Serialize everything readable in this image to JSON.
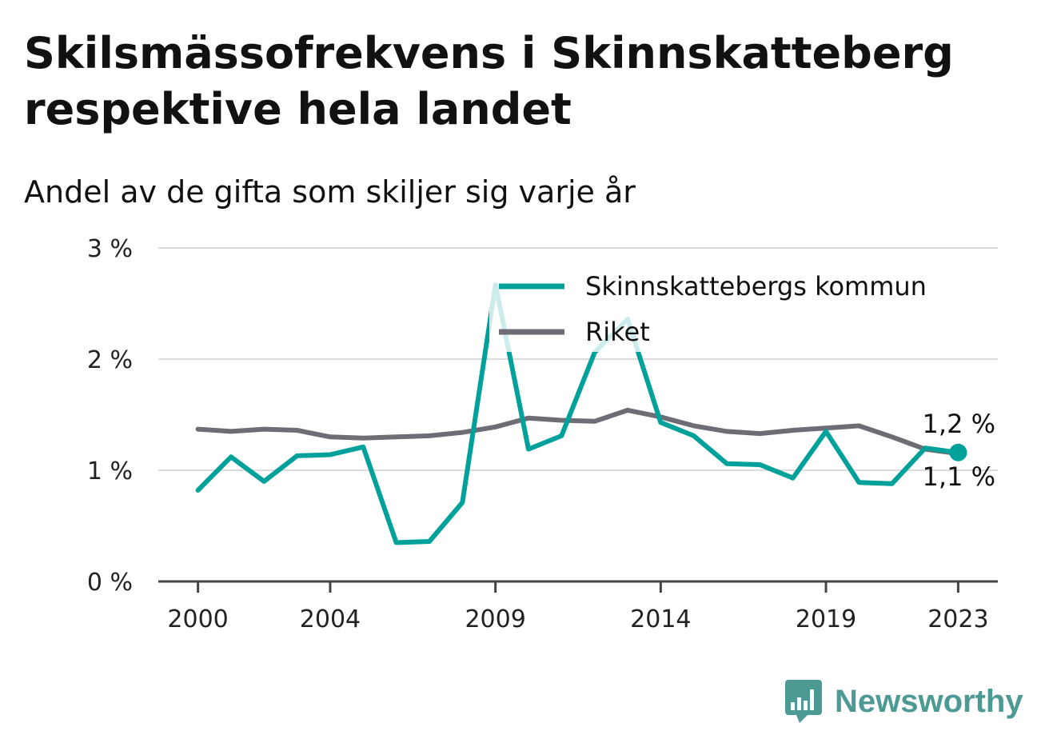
{
  "title": "Skilsmässofrekvens i Skinnskatteberg respektive hela landet",
  "subtitle": "Andel av de gifta som skiljer sig varje år",
  "brand": {
    "name": "Newsworthy",
    "icon": "newsworthy-logo-icon",
    "color": "#4d9a94"
  },
  "chart_data": {
    "type": "line",
    "x": [
      2000,
      2001,
      2002,
      2003,
      2004,
      2005,
      2006,
      2007,
      2008,
      2009,
      2010,
      2011,
      2012,
      2013,
      2014,
      2015,
      2016,
      2017,
      2018,
      2019,
      2020,
      2021,
      2022,
      2023
    ],
    "x_tick_labels": [
      "2000",
      "2004",
      "2009",
      "2014",
      "2019",
      "2023"
    ],
    "x_ticks": [
      2000,
      2004,
      2009,
      2014,
      2019,
      2023
    ],
    "y_ticks": [
      0,
      1,
      2,
      3
    ],
    "y_tick_labels": [
      "0 %",
      "1 %",
      "2 %",
      "3 %"
    ],
    "ylim": [
      0,
      3
    ],
    "xlim": [
      1998.8,
      2024.2
    ],
    "grid": true,
    "legend_position": "top-right",
    "series": [
      {
        "name": "Skinnskattebergs kommun",
        "color": "#00a19a",
        "values": [
          0.82,
          1.12,
          0.9,
          1.13,
          1.14,
          1.21,
          0.35,
          0.36,
          0.71,
          2.67,
          1.19,
          1.31,
          2.06,
          2.36,
          1.43,
          1.31,
          1.06,
          1.05,
          0.93,
          1.35,
          0.89,
          0.88,
          1.2,
          1.16
        ],
        "end_label": "1,2 %"
      },
      {
        "name": "Riket",
        "color": "#6e6d75",
        "values": [
          1.37,
          1.35,
          1.37,
          1.36,
          1.3,
          1.29,
          1.3,
          1.31,
          1.34,
          1.39,
          1.47,
          1.45,
          1.44,
          1.54,
          1.48,
          1.4,
          1.35,
          1.33,
          1.36,
          1.38,
          1.4,
          1.3,
          1.19,
          1.15
        ],
        "end_label": "1,1 %"
      }
    ]
  }
}
